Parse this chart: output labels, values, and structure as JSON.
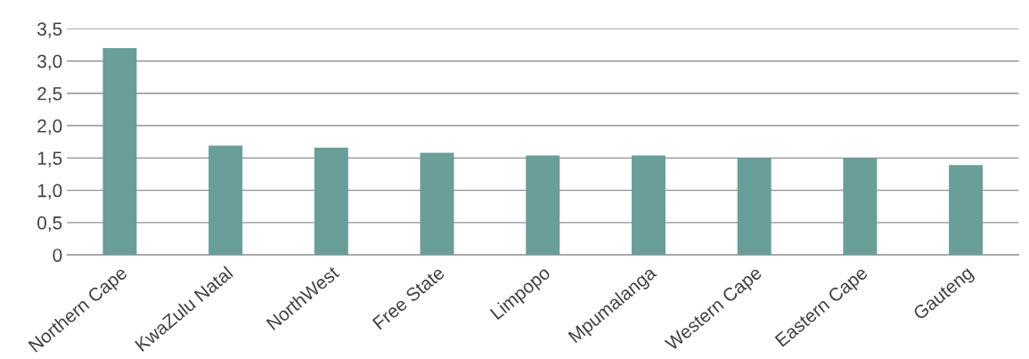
{
  "chart_data": {
    "type": "bar",
    "categories": [
      "Northern Cape",
      "KwaZulu Natal",
      "NorthWest",
      "Free State",
      "Limpopo",
      "Mpumalanga",
      "Western Cape",
      "Eastern Cape",
      "Gauteng"
    ],
    "values": [
      3.2,
      1.69,
      1.66,
      1.58,
      1.54,
      1.54,
      1.5,
      1.5,
      1.39
    ],
    "color": "#6a9e98",
    "ylim": [
      0,
      3.5
    ],
    "yticks": [
      0,
      {
        "value": 0.5,
        "label": "0,5"
      },
      {
        "value": 1.0,
        "label": "1,0"
      },
      {
        "value": 1.5,
        "label": "1,5"
      },
      {
        "value": 2.0,
        "label": "2,0"
      },
      {
        "value": 2.5,
        "label": "2,5"
      },
      {
        "value": 3.0,
        "label": "3,0"
      },
      {
        "value": 3.5,
        "label": "3,5"
      }
    ],
    "grid": "y"
  }
}
